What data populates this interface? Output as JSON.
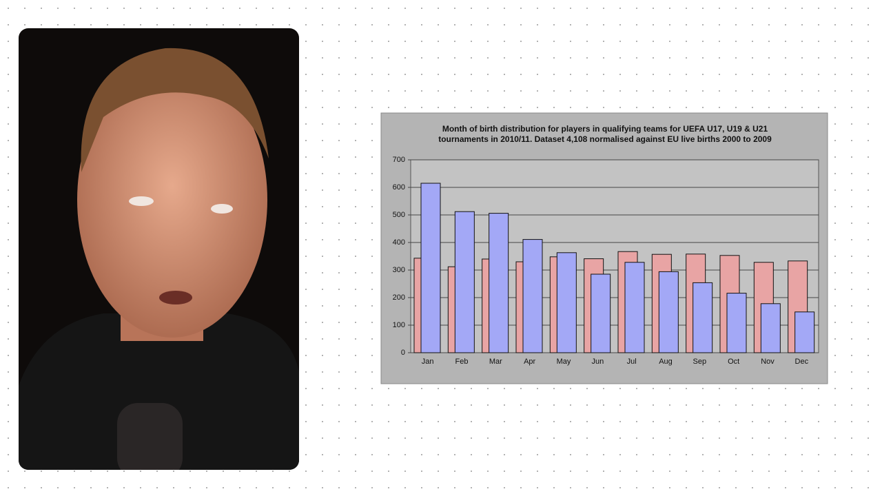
{
  "chart_data": {
    "type": "bar",
    "title": [
      "Month of birth distribution for players in qualifying teams for UEFA U17, U19 & U21",
      "tournaments in 2010/11. Dataset 4,108 normalised against EU live births 2000 to 2009"
    ],
    "categories": [
      "Jan",
      "Feb",
      "Mar",
      "Apr",
      "May",
      "Jun",
      "Jul",
      "Aug",
      "Sep",
      "Oct",
      "Nov",
      "Dec"
    ],
    "series": [
      {
        "color": "#e8a4a4",
        "values": [
          343,
          312,
          340,
          330,
          348,
          341,
          367,
          357,
          358,
          353,
          328,
          333
        ]
      },
      {
        "color": "#a3a8f6",
        "values": [
          615,
          512,
          506,
          411,
          363,
          285,
          328,
          294,
          254,
          216,
          178,
          148
        ]
      }
    ],
    "ylim": [
      0,
      700
    ],
    "yticks": [
      0,
      100,
      200,
      300,
      400,
      500,
      600,
      700
    ],
    "grid": true
  }
}
